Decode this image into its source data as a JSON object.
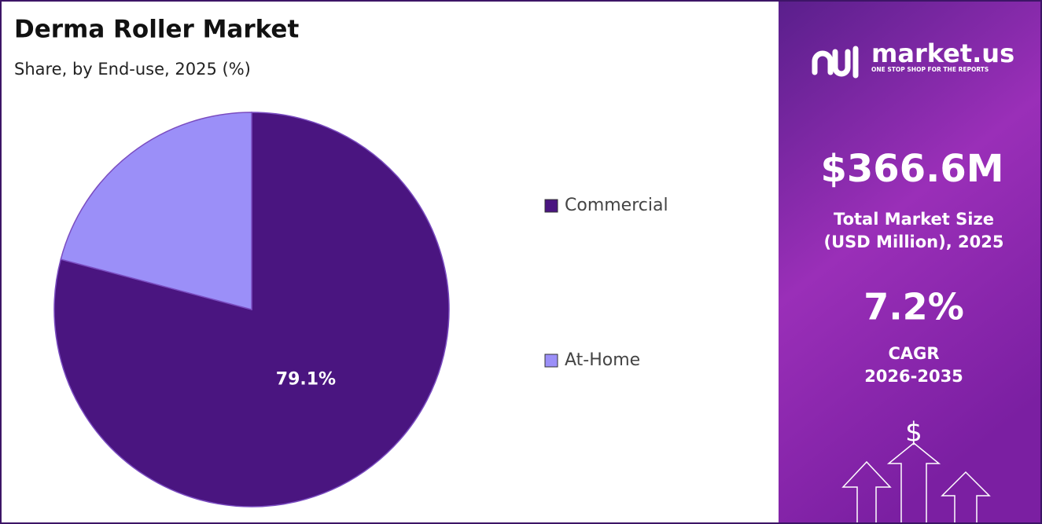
{
  "chart_data": {
    "type": "pie",
    "title": "Derma Roller Market",
    "subtitle": "Share, by End-use, 2025 (%)",
    "categories": [
      "Commercial",
      "At-Home"
    ],
    "values": [
      79.1,
      20.9
    ],
    "value_labels": [
      "79.1%",
      null
    ],
    "colors": [
      "#4a1580",
      "#9b8ff8"
    ]
  },
  "panel": {
    "brand": "market.us",
    "tagline": "ONE STOP SHOP FOR THE REPORTS",
    "market_size": "$366.6M",
    "market_size_label_1": "Total Market Size",
    "market_size_label_2": "(USD Million), 2025",
    "cagr": "7.2%",
    "cagr_label_1": "CAGR",
    "cagr_label_2": "2026-2035",
    "icon": "$"
  }
}
